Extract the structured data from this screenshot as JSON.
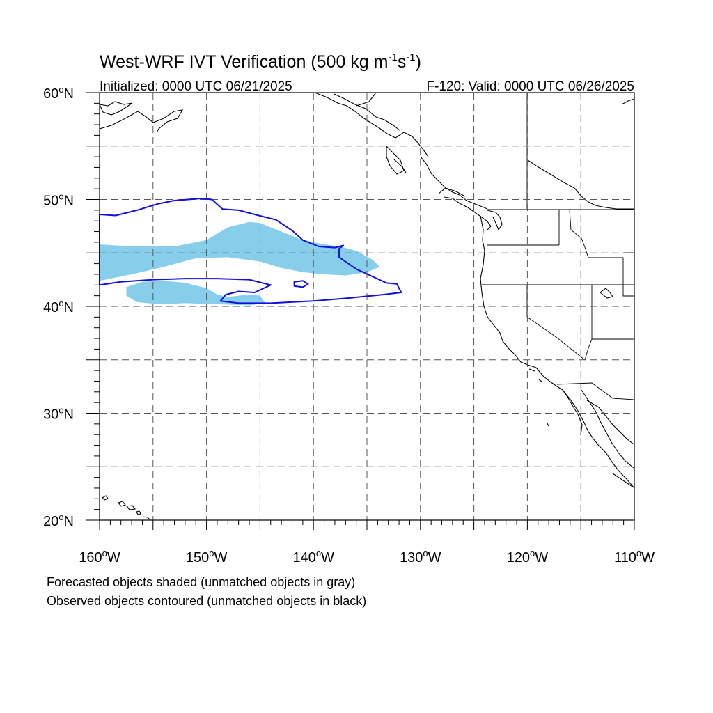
{
  "title": {
    "main": "West-WRF IVT Verification (500 kg m",
    "exp1": "-1",
    "mid": "s",
    "exp2": "-1",
    "close": ")"
  },
  "subtitle_left": "Initialized: 0000 UTC 06/21/2025",
  "subtitle_right": "F-120: Valid: 0000 UTC 06/26/2025",
  "footnotes": [
    "Forecasted objects shaded (unmatched objects in gray)",
    "Observed objects contoured (unmatched objects in black)"
  ],
  "map": {
    "extent": {
      "lon": [
        -160,
        -110
      ],
      "lat": [
        20,
        60
      ]
    },
    "lat_labels": [
      {
        "lat": 60,
        "text": "60°N"
      },
      {
        "lat": 50,
        "text": "50°N"
      },
      {
        "lat": 40,
        "text": "40°N"
      },
      {
        "lat": 30,
        "text": "30°N"
      },
      {
        "lat": 20,
        "text": "20°N"
      }
    ],
    "lon_labels": [
      {
        "lon": -160,
        "text": "160°W"
      },
      {
        "lon": -150,
        "text": "150°W"
      },
      {
        "lon": -140,
        "text": "140°W"
      },
      {
        "lon": -130,
        "text": "130°W"
      },
      {
        "lon": -120,
        "text": "120°W"
      },
      {
        "lon": -110,
        "text": "110°W"
      }
    ],
    "grid_lons": [
      -155,
      -150,
      -145,
      -140,
      -135,
      -130,
      -125,
      -120,
      -115
    ],
    "grid_lats": [
      25,
      30,
      35,
      40,
      45,
      50,
      55
    ],
    "grid_style": "dashed",
    "colors": {
      "forecast_fill": "#87ceeb",
      "observed_contour": "#1010dd",
      "coastline": "#000000",
      "grid": "#555555"
    },
    "forecast_objects": [
      {
        "name": "forecast-object-main",
        "points": [
          [
            -160,
            45.8
          ],
          [
            -157,
            45.6
          ],
          [
            -153,
            45.6
          ],
          [
            -150,
            46.2
          ],
          [
            -148,
            47.4
          ],
          [
            -146,
            47.9
          ],
          [
            -145,
            47.8
          ],
          [
            -143,
            47.0
          ],
          [
            -141,
            46.2
          ],
          [
            -139,
            45.8
          ],
          [
            -137.5,
            45.6
          ],
          [
            -136,
            45.2
          ],
          [
            -134.5,
            44.4
          ],
          [
            -133.8,
            43.7
          ],
          [
            -135,
            43.2
          ],
          [
            -137,
            42.9
          ],
          [
            -139,
            43.0
          ],
          [
            -141,
            43.2
          ],
          [
            -143,
            43.6
          ],
          [
            -145,
            44.2
          ],
          [
            -148,
            44.6
          ],
          [
            -151,
            44.5
          ],
          [
            -154,
            43.7
          ],
          [
            -157,
            43.0
          ],
          [
            -160,
            42.4
          ]
        ]
      },
      {
        "name": "forecast-object-south",
        "points": [
          [
            -157.5,
            41.8
          ],
          [
            -156,
            42.3
          ],
          [
            -154,
            42.4
          ],
          [
            -152,
            42.2
          ],
          [
            -150,
            41.7
          ],
          [
            -149,
            41.1
          ],
          [
            -148,
            40.9
          ],
          [
            -146,
            41.1
          ],
          [
            -145,
            41.0
          ],
          [
            -144.5,
            40.3
          ],
          [
            -146,
            40.1
          ],
          [
            -149,
            40.2
          ],
          [
            -152,
            40.3
          ],
          [
            -154.5,
            40.2
          ],
          [
            -156.5,
            40.4
          ],
          [
            -157.5,
            41.0
          ]
        ]
      }
    ],
    "observed_objects": [
      {
        "name": "observed-contour-north",
        "points": [
          [
            -160,
            48.6
          ],
          [
            -158.5,
            48.5
          ],
          [
            -156.5,
            49.0
          ],
          [
            -154.5,
            49.6
          ],
          [
            -153,
            49.9
          ],
          [
            -150.5,
            50.1
          ],
          [
            -149.5,
            50.0
          ],
          [
            -148.5,
            49.1
          ],
          [
            -147,
            49.0
          ],
          [
            -145.5,
            48.6
          ],
          [
            -143.5,
            48.1
          ],
          [
            -142,
            47.1
          ],
          [
            -141,
            46.2
          ],
          [
            -139.5,
            45.6
          ],
          [
            -138,
            45.5
          ],
          [
            -137.2,
            45.7
          ],
          [
            -137.6,
            45.4
          ],
          [
            -137.6,
            44.6
          ],
          [
            -136,
            43.5
          ],
          [
            -134.5,
            42.8
          ],
          [
            -133.2,
            42.2
          ],
          [
            -132.2,
            42.1
          ],
          [
            -131.8,
            41.3
          ],
          [
            -133.5,
            41.1
          ],
          [
            -136.5,
            40.8
          ],
          [
            -140,
            40.5
          ],
          [
            -144,
            40.3
          ],
          [
            -147,
            40.3
          ],
          [
            -148.7,
            40.5
          ],
          [
            -148.2,
            41.1
          ],
          [
            -147,
            41.4
          ],
          [
            -145.5,
            41.3
          ],
          [
            -144,
            42.0
          ],
          [
            -146,
            42.5
          ],
          [
            -149,
            42.6
          ],
          [
            -152,
            42.6
          ],
          [
            -155,
            42.5
          ],
          [
            -158,
            42.3
          ],
          [
            -160,
            42.0
          ]
        ]
      },
      {
        "name": "observed-contour-blob",
        "points": [
          [
            -141.8,
            42.3
          ],
          [
            -141,
            42.4
          ],
          [
            -140.5,
            42.1
          ],
          [
            -141,
            41.8
          ],
          [
            -141.8,
            41.9
          ]
        ]
      }
    ],
    "land_fill": "none"
  }
}
